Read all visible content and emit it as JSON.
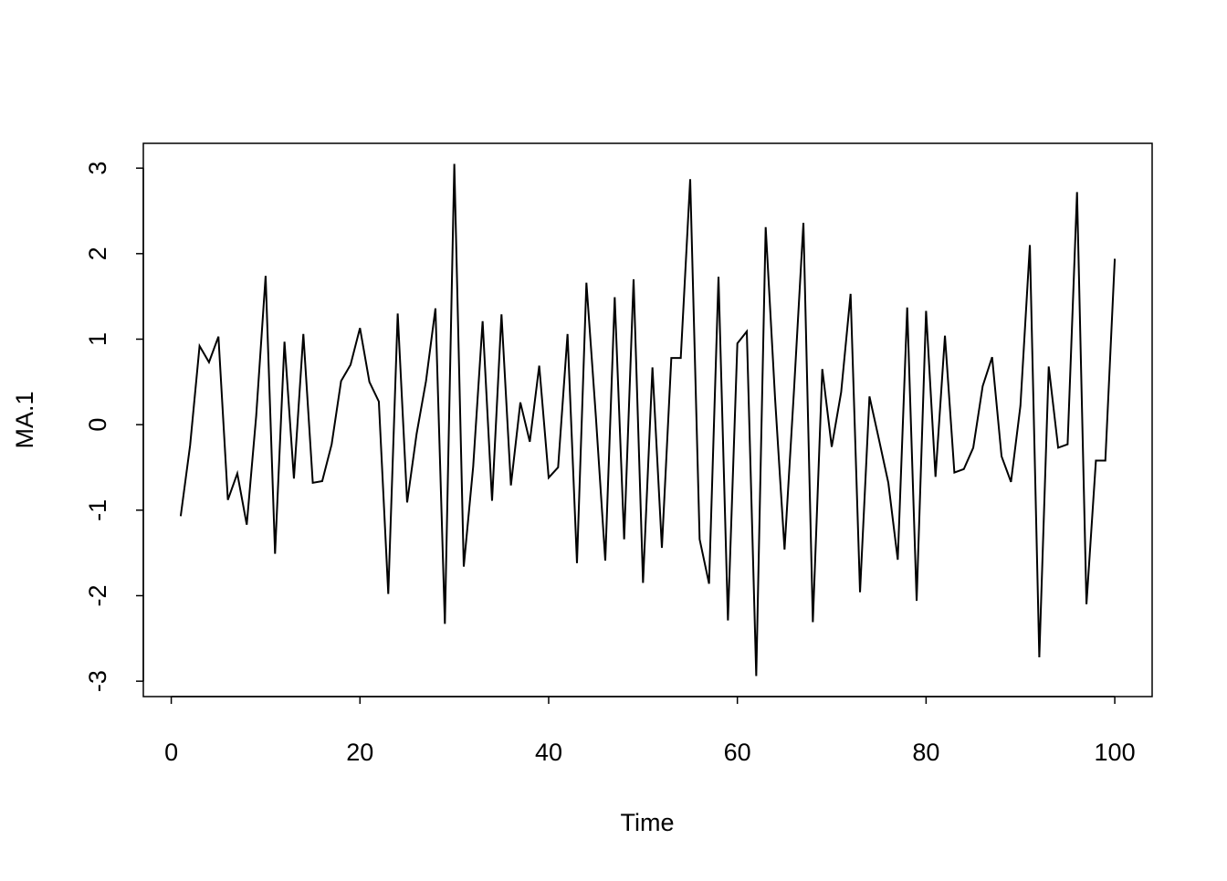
{
  "chart_data": {
    "type": "line",
    "x_label": "Time",
    "y_label": "MA.1",
    "x": [
      1,
      2,
      3,
      4,
      5,
      6,
      7,
      8,
      9,
      10,
      11,
      12,
      13,
      14,
      15,
      16,
      17,
      18,
      19,
      20,
      21,
      22,
      23,
      24,
      25,
      26,
      27,
      28,
      29,
      30,
      31,
      32,
      33,
      34,
      35,
      36,
      37,
      38,
      39,
      40,
      41,
      42,
      43,
      44,
      45,
      46,
      47,
      48,
      49,
      50,
      51,
      52,
      53,
      54,
      55,
      56,
      57,
      58,
      59,
      60,
      61,
      62,
      63,
      64,
      65,
      66,
      67,
      68,
      69,
      70,
      71,
      72,
      73,
      74,
      75,
      76,
      77,
      78,
      79,
      80,
      81,
      82,
      83,
      84,
      85,
      86,
      87,
      88,
      89,
      90,
      91,
      92,
      93,
      94,
      95,
      96,
      97,
      98,
      99,
      100
    ],
    "series": [
      {
        "color": "#000000",
        "values": [
          -1.07,
          -0.24,
          0.92,
          0.73,
          1.03,
          -0.88,
          -0.57,
          -1.17,
          0.1,
          1.74,
          -1.51,
          0.97,
          -0.63,
          1.06,
          -0.68,
          -0.66,
          -0.23,
          0.51,
          0.7,
          1.13,
          0.5,
          0.27,
          -1.98,
          1.3,
          -0.91,
          -0.11,
          0.51,
          1.36,
          -2.33,
          3.05,
          -1.66,
          -0.49,
          1.21,
          -0.89,
          1.29,
          -0.71,
          0.26,
          -0.2,
          0.69,
          -0.62,
          -0.5,
          1.06,
          -1.62,
          1.66,
          0.1,
          -1.59,
          1.49,
          -1.34,
          1.7,
          -1.85,
          0.67,
          -1.44,
          0.78,
          0.78,
          2.87,
          -1.34,
          -1.86,
          1.73,
          -2.29,
          0.95,
          1.09,
          -2.94,
          2.31,
          0.3,
          -1.46,
          0.4,
          2.36,
          -2.31,
          0.65,
          -0.26,
          0.38,
          1.53,
          -1.96,
          0.33,
          -0.17,
          -0.68,
          -1.58,
          1.37,
          -2.06,
          1.33,
          -0.61,
          1.04,
          -0.56,
          -0.52,
          -0.27,
          0.45,
          0.79,
          -0.37,
          -0.67,
          0.22,
          2.1,
          -2.72,
          0.68,
          -0.27,
          -0.23,
          2.72,
          -2.1,
          -0.42,
          -0.42,
          1.94
        ]
      }
    ],
    "xlim": [
      -2.96,
      103.96
    ],
    "ylim": [
      -3.18,
      3.29
    ],
    "xticks": [
      0,
      20,
      40,
      60,
      80,
      100
    ],
    "yticks": [
      -3,
      -2,
      -1,
      0,
      1,
      2,
      3
    ]
  }
}
